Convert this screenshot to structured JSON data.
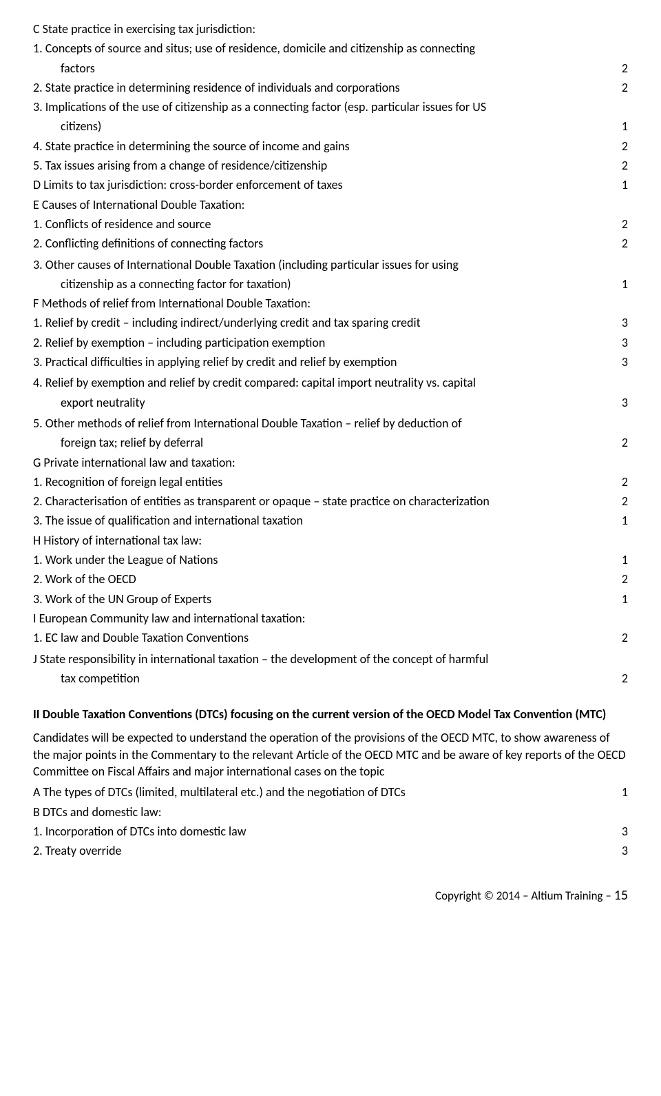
{
  "lines": [
    {
      "text": "C State practice in exercising tax jurisdiction:",
      "num": "",
      "indent": 0
    },
    {
      "text": "1. Concepts of source and situs; use of residence, domicile and citizenship as connecting",
      "num": "",
      "indent": 0
    },
    {
      "text": "factors",
      "num": "2",
      "indent": 1
    },
    {
      "text": "2. State practice in determining residence of individuals and corporations",
      "num": "2",
      "indent": 0
    },
    {
      "text": "3. Implications of the use of citizenship as a connecting factor (esp. particular issues for US",
      "num": "",
      "indent": 0
    },
    {
      "text": "citizens)",
      "num": "1",
      "indent": 1
    },
    {
      "text": "4. State practice in determining the source of income and gains",
      "num": "2",
      "indent": 0
    },
    {
      "text": "5. Tax issues arising from a change of residence/citizenship",
      "num": "2",
      "indent": 0
    },
    {
      "text": "D Limits to tax jurisdiction: cross-border enforcement of taxes",
      "num": "1",
      "indent": 0
    },
    {
      "text": "E Causes of International Double Taxation:",
      "num": "",
      "indent": 0
    },
    {
      "text": "1. Conflicts of residence and source",
      "num": "2",
      "indent": 0
    },
    {
      "text": "2. Conflicting definitions of connecting factors",
      "num": "2",
      "indent": 0
    },
    {
      "text": "3. Other causes of International Double Taxation (including particular issues for using",
      "num": "",
      "indent": 0,
      "gap": true
    },
    {
      "text": "citizenship as a connecting factor for taxation)",
      "num": "1",
      "indent": 1
    },
    {
      "text": "F Methods of relief from International Double Taxation:",
      "num": "",
      "indent": 0
    },
    {
      "text": "1. Relief by credit – including indirect/underlying credit and tax sparing credit",
      "num": "3",
      "indent": 0
    },
    {
      "text": "2. Relief by exemption – including participation exemption",
      "num": "3",
      "indent": 0
    },
    {
      "text": "3. Practical difficulties in applying relief by credit and relief by exemption",
      "num": "3",
      "indent": 0
    },
    {
      "text": "4. Relief by exemption and relief by credit compared: capital import neutrality vs. capital",
      "num": "",
      "indent": 0,
      "gap": true
    },
    {
      "text": "export neutrality",
      "num": "3",
      "indent": 1
    },
    {
      "text": "5. Other methods of relief from International Double Taxation – relief by deduction of",
      "num": "",
      "indent": 0,
      "gap": true
    },
    {
      "text": "foreign tax; relief by deferral",
      "num": "2",
      "indent": 1
    },
    {
      "text": "G Private international law and taxation:",
      "num": "",
      "indent": 0
    },
    {
      "text": "1. Recognition of foreign legal entities",
      "num": "2",
      "indent": 0
    },
    {
      "text": "2. Characterisation of entities as transparent or opaque – state practice on characterization",
      "num": "2",
      "indent": 0
    },
    {
      "text": "3. The issue of qualification and international taxation",
      "num": "1",
      "indent": 0
    },
    {
      "text": "H History of international tax law:",
      "num": "",
      "indent": 0
    },
    {
      "text": "1. Work under the League of Nations",
      "num": "1",
      "indent": 0
    },
    {
      "text": "2. Work of the OECD",
      "num": "2",
      "indent": 0
    },
    {
      "text": "3. Work of the UN Group of Experts",
      "num": "1",
      "indent": 0
    },
    {
      "text": "I  European Community law and international taxation:",
      "num": "",
      "indent": 0
    },
    {
      "text": "1. EC law and Double Taxation Conventions",
      "num": "2",
      "indent": 0
    },
    {
      "text": "J  State responsibility in international taxation – the development of the concept of harmful",
      "num": "",
      "indent": 0,
      "gap": true
    },
    {
      "text": "tax competition",
      "num": "2",
      "indent": 1
    }
  ],
  "heading2": "II Double Taxation Conventions (DTCs) focusing on the current version of the OECD Model Tax Convention (MTC)",
  "para2": "Candidates will be expected to understand the operation of the provisions of the OECD MTC, to show awareness of the major points in the Commentary to the relevant Article of the OECD MTC and be aware of key reports of the OECD Committee on Fiscal Affairs and major international cases on the topic",
  "lines2": [
    {
      "text": "A The types of DTCs (limited, multilateral etc.) and the negotiation of DTCs",
      "num": "1",
      "indent": 0
    },
    {
      "text": "B DTCs and domestic law:",
      "num": "",
      "indent": 0
    },
    {
      "text": "1. Incorporation of DTCs into domestic law",
      "num": "3",
      "indent": 0
    },
    {
      "text": "2. Treaty override",
      "num": "3",
      "indent": 0
    }
  ],
  "footer": {
    "copyright": "Copyright © 2014 – Altium Training – ",
    "page": "15"
  }
}
